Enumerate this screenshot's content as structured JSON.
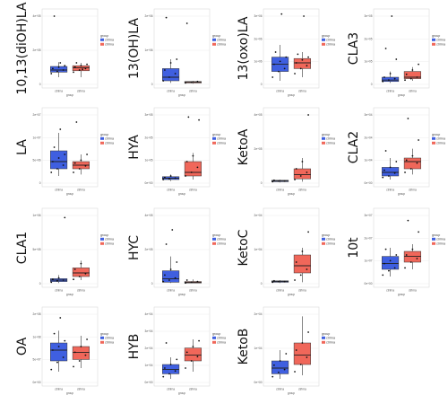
{
  "legend": {
    "title": "group",
    "labels": [
      "ctrlrna",
      "ctrlrna"
    ]
  },
  "colors": {
    "ctrl": "#3f5fe0",
    "treat": "#f0675a",
    "panel": "#ffffff",
    "grid": "#ececec",
    "border": "#d9d9d9"
  },
  "group_label": "group",
  "chart_data": [
    {
      "type": "box",
      "ylabel": "10,13(diOH)LA",
      "categories": [
        "ctrlrna",
        "ctrlrna"
      ],
      "ylim": [
        0,
        1
      ],
      "yticks": [
        "0",
        "2e+05",
        "4e+05"
      ],
      "stats": [
        {
          "min": 0.1,
          "q1": 0.17,
          "median": 0.2,
          "q3": 0.25,
          "max": 0.31
        },
        {
          "min": 0.1,
          "q1": 0.19,
          "median": 0.23,
          "q3": 0.26,
          "max": 0.3
        }
      ],
      "points": [
        [
          0.15,
          0.18,
          0.2,
          0.22,
          0.24,
          0.26,
          0.95,
          0.3
        ],
        [
          0.17,
          0.2,
          0.22,
          0.24,
          0.26,
          0.28,
          0.3,
          0.21
        ]
      ]
    },
    {
      "type": "box",
      "ylabel": "13(OH)LA",
      "categories": [
        "ctrlrna",
        "ctrlrna"
      ],
      "ylim": [
        0,
        1
      ],
      "yticks": [
        "0",
        "1e+06",
        "2e+06"
      ],
      "stats": [
        {
          "min": 0.02,
          "q1": 0.05,
          "median": 0.1,
          "q3": 0.22,
          "max": 0.35
        },
        {
          "min": 0.01,
          "q1": 0.02,
          "median": 0.03,
          "q3": 0.04,
          "max": 0.05
        }
      ],
      "points": [
        [
          0.05,
          0.1,
          0.15,
          0.2,
          0.3,
          0.35,
          0.93
        ],
        [
          0.02,
          0.03,
          0.04,
          0.85
        ]
      ]
    },
    {
      "type": "box",
      "ylabel": "13(oxo)LA",
      "categories": [
        "ctrlrna",
        "ctrlrna"
      ],
      "ylim": [
        0,
        1
      ],
      "yticks": [
        "0",
        "1e+06",
        "2e+06",
        "3e+06"
      ],
      "stats": [
        {
          "min": 0.05,
          "q1": 0.18,
          "median": 0.28,
          "q3": 0.38,
          "max": 0.55
        },
        {
          "min": 0.1,
          "q1": 0.22,
          "median": 0.3,
          "q3": 0.36,
          "max": 0.45
        }
      ],
      "points": [
        [
          0.1,
          0.18,
          0.22,
          0.28,
          0.32,
          0.38,
          0.45,
          0.98
        ],
        [
          0.15,
          0.22,
          0.26,
          0.3,
          0.34,
          0.38,
          0.42,
          0.95
        ]
      ]
    },
    {
      "type": "box",
      "ylabel": "CLA3",
      "categories": [
        "ctrlrna",
        "ctrlrna"
      ],
      "ylim": [
        0,
        1
      ],
      "yticks": [
        "0",
        "1e+05",
        "2e+05",
        "3e+05"
      ],
      "stats": [
        {
          "min": 0.02,
          "q1": 0.04,
          "median": 0.06,
          "q3": 0.1,
          "max": 0.18
        },
        {
          "min": 0.05,
          "q1": 0.08,
          "median": 0.1,
          "q3": 0.18,
          "max": 0.24
        }
      ],
      "points": [
        [
          0.04,
          0.06,
          0.08,
          0.1,
          0.15,
          0.35,
          0.5,
          0.95
        ],
        [
          0.06,
          0.08,
          0.1,
          0.14,
          0.2,
          0.28
        ]
      ]
    },
    {
      "type": "box",
      "ylabel": "LA",
      "categories": [
        "ctrlrna",
        "ctrlrna"
      ],
      "ylim": [
        0,
        1
      ],
      "yticks": [
        "0",
        "5e+06",
        "1e+07",
        "2e+07"
      ],
      "stats": [
        {
          "min": 0.1,
          "q1": 0.2,
          "median": 0.3,
          "q3": 0.45,
          "max": 0.7
        },
        {
          "min": 0.12,
          "q1": 0.2,
          "median": 0.25,
          "q3": 0.3,
          "max": 0.4
        }
      ],
      "points": [
        [
          0.15,
          0.2,
          0.25,
          0.3,
          0.35,
          0.4,
          0.5,
          0.75
        ],
        [
          0.15,
          0.2,
          0.24,
          0.28,
          0.32,
          0.4,
          0.85
        ]
      ]
    },
    {
      "type": "box",
      "ylabel": "HYA",
      "categories": [
        "ctrlrna",
        "ctrlrna"
      ],
      "ylim": [
        0,
        1
      ],
      "yticks": [
        "0e+00",
        "1e+05",
        "2e+05",
        "3e+05"
      ],
      "stats": [
        {
          "min": 0.03,
          "q1": 0.05,
          "median": 0.07,
          "q3": 0.09,
          "max": 0.12
        },
        {
          "min": 0.05,
          "q1": 0.1,
          "median": 0.15,
          "q3": 0.3,
          "max": 0.42
        }
      ],
      "points": [
        [
          0.05,
          0.06,
          0.07,
          0.08,
          0.1
        ],
        [
          0.1,
          0.15,
          0.22,
          0.3,
          0.38,
          0.88,
          0.92
        ]
      ]
    },
    {
      "type": "box",
      "ylabel": "KetoA",
      "categories": [
        "ctrlrna",
        "ctrlrna"
      ],
      "ylim": [
        0,
        1
      ],
      "yticks": [
        "0",
        "2e+05",
        "4e+05"
      ],
      "stats": [
        {
          "min": 0.01,
          "q1": 0.02,
          "median": 0.03,
          "q3": 0.04,
          "max": 0.05
        },
        {
          "min": 0.02,
          "q1": 0.06,
          "median": 0.12,
          "q3": 0.2,
          "max": 0.35
        }
      ],
      "points": [
        [
          0.02,
          0.03,
          0.03,
          0.04
        ],
        [
          0.05,
          0.1,
          0.15,
          0.2,
          0.3,
          0.95
        ]
      ]
    },
    {
      "type": "box",
      "ylabel": "CLA2",
      "categories": [
        "ctrlrna",
        "ctrlrna"
      ],
      "ylim": [
        0,
        1
      ],
      "yticks": [
        "0e+00",
        "1e+04",
        "2e+04",
        "3e+04"
      ],
      "stats": [
        {
          "min": 0.05,
          "q1": 0.1,
          "median": 0.15,
          "q3": 0.22,
          "max": 0.35
        },
        {
          "min": 0.12,
          "q1": 0.2,
          "median": 0.3,
          "q3": 0.35,
          "max": 0.48
        }
      ],
      "points": [
        [
          0.08,
          0.1,
          0.14,
          0.18,
          0.22,
          0.3,
          0.45
        ],
        [
          0.15,
          0.2,
          0.28,
          0.32,
          0.38,
          0.6,
          0.9
        ]
      ]
    },
    {
      "type": "box",
      "ylabel": "CLA1",
      "categories": [
        "ctrlrna",
        "ctrlrna"
      ],
      "ylim": [
        0,
        1
      ],
      "yticks": [
        "0",
        "5e+05",
        "1e+06"
      ],
      "stats": [
        {
          "min": 0.01,
          "q1": 0.03,
          "median": 0.05,
          "q3": 0.07,
          "max": 0.12
        },
        {
          "min": 0.05,
          "q1": 0.1,
          "median": 0.15,
          "q3": 0.22,
          "max": 0.32
        }
      ],
      "points": [
        [
          0.02,
          0.04,
          0.05,
          0.06,
          0.08,
          0.92
        ],
        [
          0.06,
          0.1,
          0.14,
          0.2,
          0.28
        ]
      ]
    },
    {
      "type": "box",
      "ylabel": "HYC",
      "categories": [
        "ctrlrna",
        "ctrlrna"
      ],
      "ylim": [
        0,
        1
      ],
      "yticks": [
        "0",
        "2e+05",
        "4e+05"
      ],
      "stats": [
        {
          "min": 0.01,
          "q1": 0.02,
          "median": 0.07,
          "q3": 0.18,
          "max": 0.38
        },
        {
          "min": 0.01,
          "q1": 0.01,
          "median": 0.02,
          "q3": 0.03,
          "max": 0.06
        }
      ],
      "points": [
        [
          0.03,
          0.05,
          0.08,
          0.12,
          0.2,
          0.3,
          0.55,
          0.75
        ],
        [
          0.01,
          0.02,
          0.03,
          0.05
        ]
      ]
    },
    {
      "type": "box",
      "ylabel": "KetoC",
      "categories": [
        "ctrlrna",
        "ctrlrna"
      ],
      "ylim": [
        0,
        1
      ],
      "yticks": [
        "0",
        "1e+04",
        "2e+04"
      ],
      "stats": [
        {
          "min": 0.01,
          "q1": 0.02,
          "median": 0.03,
          "q3": 0.04,
          "max": 0.05
        },
        {
          "min": 0.02,
          "q1": 0.15,
          "median": 0.25,
          "q3": 0.4,
          "max": 0.5
        }
      ],
      "points": [
        [
          0.02,
          0.03,
          0.03,
          0.04
        ],
        [
          0.05,
          0.12,
          0.2,
          0.3,
          0.45,
          0.72
        ]
      ]
    },
    {
      "type": "box",
      "ylabel": "10t",
      "categories": [
        "ctrlrna",
        "ctrlrna"
      ],
      "ylim": [
        0,
        1
      ],
      "yticks": [
        "0e+00",
        "1e+07",
        "2e+07",
        "3e+07"
      ],
      "stats": [
        {
          "min": 0.1,
          "q1": 0.2,
          "median": 0.28,
          "q3": 0.38,
          "max": 0.5
        },
        {
          "min": 0.2,
          "q1": 0.3,
          "median": 0.38,
          "q3": 0.45,
          "max": 0.55
        }
      ],
      "points": [
        [
          0.12,
          0.18,
          0.22,
          0.28,
          0.32,
          0.4,
          0.48
        ],
        [
          0.22,
          0.3,
          0.35,
          0.4,
          0.48,
          0.72,
          0.88
        ]
      ]
    },
    {
      "type": "box",
      "ylabel": "OA",
      "categories": [
        "ctrlrna",
        "ctrlrna"
      ],
      "ylim": [
        0,
        1
      ],
      "yticks": [
        "0e+00",
        "5e+07",
        "1e+08",
        "2e+08"
      ],
      "stats": [
        {
          "min": 0.15,
          "q1": 0.3,
          "median": 0.45,
          "q3": 0.55,
          "max": 0.72
        },
        {
          "min": 0.2,
          "q1": 0.32,
          "median": 0.42,
          "q3": 0.5,
          "max": 0.65
        }
      ],
      "points": [
        [
          0.18,
          0.28,
          0.35,
          0.45,
          0.5,
          0.58,
          0.68,
          0.9
        ],
        [
          0.22,
          0.3,
          0.38,
          0.42,
          0.5,
          0.6
        ]
      ]
    },
    {
      "type": "box",
      "ylabel": "HYB",
      "categories": [
        "ctrlrna",
        "ctrlrna"
      ],
      "ylim": [
        0,
        1
      ],
      "yticks": [
        "0e+00",
        "1e+04",
        "2e+04",
        "3e+04",
        "4e+04"
      ],
      "stats": [
        {
          "min": 0.05,
          "q1": 0.12,
          "median": 0.18,
          "q3": 0.25,
          "max": 0.35
        },
        {
          "min": 0.15,
          "q1": 0.3,
          "median": 0.38,
          "q3": 0.48,
          "max": 0.6
        }
      ],
      "points": [
        [
          0.08,
          0.12,
          0.16,
          0.2,
          0.25,
          0.32,
          0.55
        ],
        [
          0.2,
          0.3,
          0.36,
          0.42,
          0.5,
          0.58
        ]
      ]
    },
    {
      "type": "box",
      "ylabel": "KetoB",
      "categories": [
        "ctrlrna",
        "ctrlrna"
      ],
      "ylim": [
        0,
        1
      ],
      "yticks": [
        "0e+00",
        "1e+04",
        "2e+04"
      ],
      "stats": [
        {
          "min": 0.05,
          "q1": 0.12,
          "median": 0.2,
          "q3": 0.3,
          "max": 0.45
        },
        {
          "min": 0.1,
          "q1": 0.25,
          "median": 0.38,
          "q3": 0.55,
          "max": 0.92
        }
      ],
      "points": [
        [
          0.08,
          0.14,
          0.18,
          0.24,
          0.3,
          0.4
        ],
        [
          0.15,
          0.25,
          0.35,
          0.45,
          0.55,
          0.7
        ]
      ]
    }
  ]
}
